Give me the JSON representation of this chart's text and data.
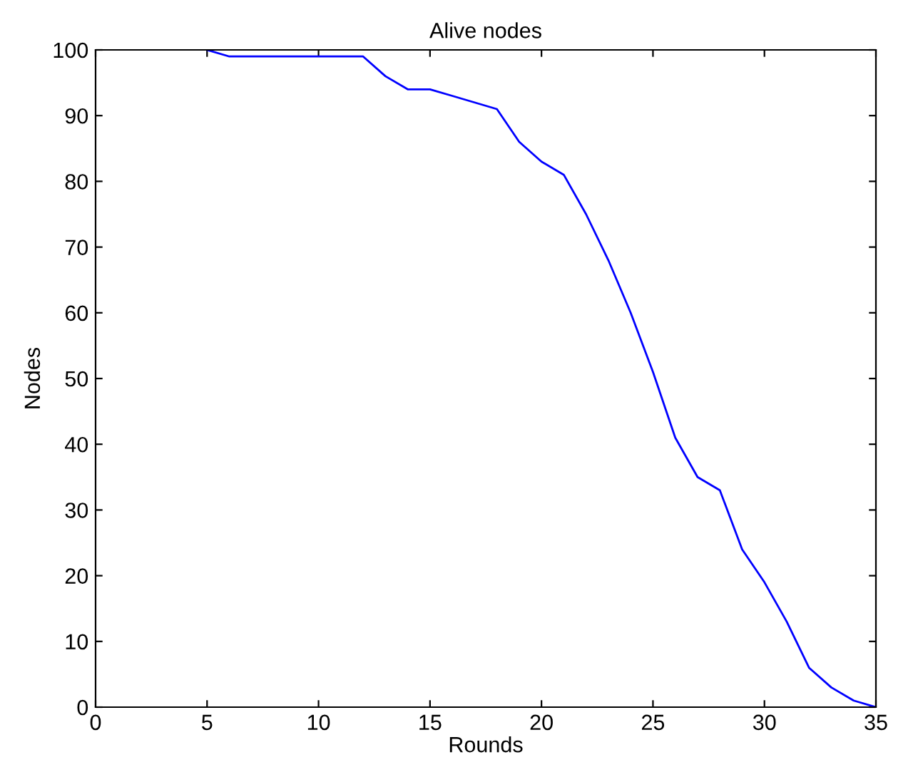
{
  "chart_data": {
    "type": "line",
    "title": "Alive nodes",
    "xlabel": "Rounds",
    "ylabel": "Nodes",
    "x": [
      5,
      6,
      7,
      8,
      9,
      10,
      11,
      12,
      13,
      14,
      15,
      16,
      17,
      18,
      19,
      20,
      21,
      22,
      23,
      24,
      25,
      26,
      27,
      28,
      29,
      30,
      31,
      32,
      33,
      34,
      35
    ],
    "series": [
      {
        "color": "#0000ff",
        "values": [
          100,
          99,
          99,
          99,
          99,
          99,
          99,
          99,
          96,
          94,
          94,
          93,
          92,
          91,
          86,
          83,
          81,
          75,
          68,
          60,
          51,
          41,
          35,
          33,
          24,
          19,
          13,
          6,
          3,
          1,
          0
        ]
      }
    ],
    "xlim": [
      0,
      35
    ],
    "xticks": [
      0,
      5,
      10,
      15,
      20,
      25,
      30,
      35
    ],
    "ylim": [
      0,
      100
    ],
    "yticks": [
      0,
      10,
      20,
      30,
      40,
      50,
      60,
      70,
      80,
      90,
      100
    ],
    "grid": false,
    "marker": "none",
    "line_style": "solid"
  }
}
